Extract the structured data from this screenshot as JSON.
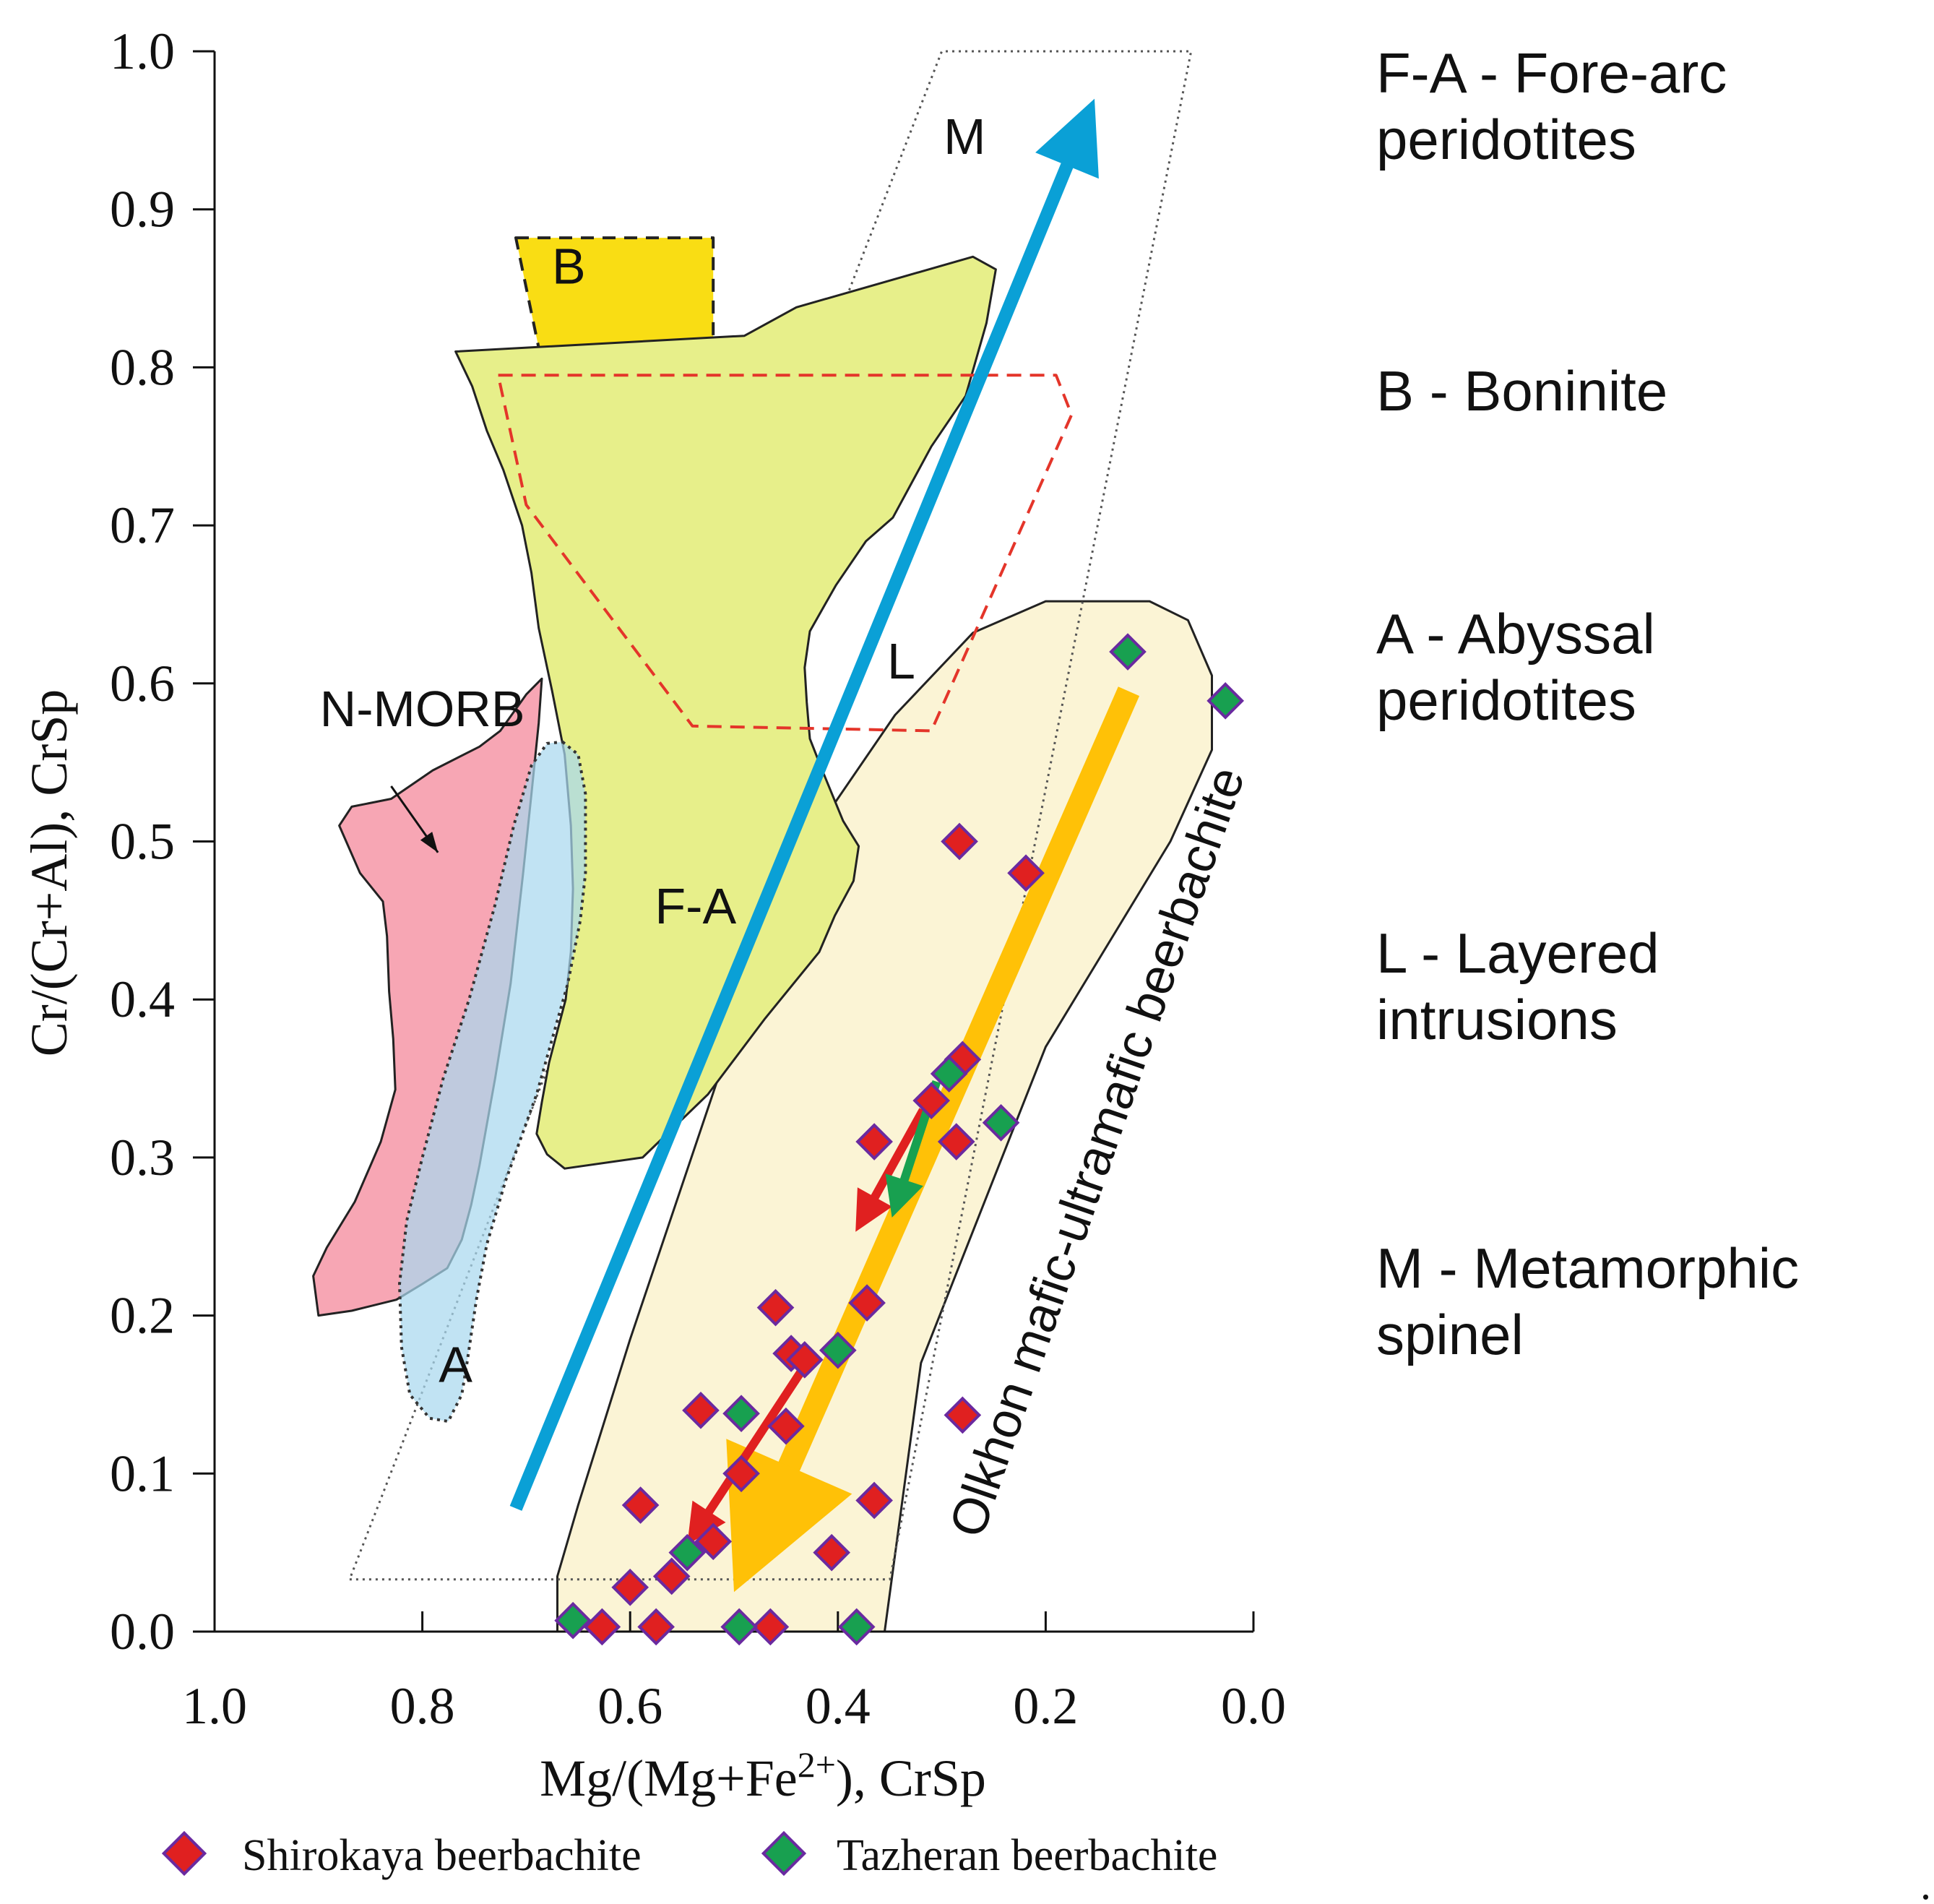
{
  "chart_data": {
    "type": "scatter",
    "xlabel": "Mg/(Mg+Fe2+), CrSp",
    "xlabel_base": "Mg/(Mg+Fe",
    "xlabel_sup": "2+",
    "xlabel_tail": "), CrSp",
    "ylabel": "Cr/(Cr+Al), CrSp",
    "xlim": [
      1.0,
      0.0
    ],
    "ylim": [
      0.0,
      1.0
    ],
    "x_reversed": true,
    "x_ticks": [
      "1.0",
      "0.8",
      "0.6",
      "0.4",
      "0.2",
      "0.0"
    ],
    "y_ticks": [
      "0.0",
      "0.1",
      "0.2",
      "0.3",
      "0.4",
      "0.5",
      "0.6",
      "0.7",
      "0.8",
      "0.9",
      "1.0"
    ],
    "fields": [
      {
        "label": "M",
        "name": "Metamorphic spinel",
        "color": "#555555",
        "style": "dotted",
        "polygon": [
          [
            0.87,
            0.033
          ],
          [
            0.35,
            0.033
          ],
          [
            0.06,
            1.0
          ],
          [
            0.3,
            1.0
          ]
        ]
      },
      {
        "label": "B",
        "name": "Boninite",
        "color": "#f9dd14",
        "style": "dashed",
        "polygon": [
          [
            0.71,
            0.882
          ],
          [
            0.52,
            0.882
          ],
          [
            0.52,
            0.8
          ],
          [
            0.66,
            0.724
          ]
        ]
      },
      {
        "label": "F-A",
        "name": "Fore-arc peridotites",
        "color": "#e7ef8a",
        "style": "solid",
        "polygon": [
          [
            0.49,
            0.82
          ],
          [
            0.44,
            0.838
          ],
          [
            0.27,
            0.87
          ],
          [
            0.248,
            0.862
          ],
          [
            0.257,
            0.828
          ],
          [
            0.277,
            0.782
          ],
          [
            0.31,
            0.75
          ],
          [
            0.347,
            0.705
          ],
          [
            0.373,
            0.69
          ],
          [
            0.402,
            0.662
          ],
          [
            0.427,
            0.633
          ],
          [
            0.432,
            0.61
          ],
          [
            0.43,
            0.588
          ],
          [
            0.427,
            0.565
          ],
          [
            0.415,
            0.545
          ],
          [
            0.395,
            0.513
          ],
          [
            0.38,
            0.497
          ],
          [
            0.385,
            0.475
          ],
          [
            0.403,
            0.453
          ],
          [
            0.418,
            0.43
          ],
          [
            0.47,
            0.388
          ],
          [
            0.525,
            0.34
          ],
          [
            0.588,
            0.3
          ],
          [
            0.663,
            0.293
          ],
          [
            0.68,
            0.302
          ],
          [
            0.69,
            0.315
          ],
          [
            0.685,
            0.335
          ],
          [
            0.678,
            0.36
          ],
          [
            0.67,
            0.38
          ],
          [
            0.662,
            0.4
          ],
          [
            0.657,
            0.43
          ],
          [
            0.655,
            0.47
          ],
          [
            0.657,
            0.51
          ],
          [
            0.663,
            0.555
          ],
          [
            0.675,
            0.595
          ],
          [
            0.688,
            0.635
          ],
          [
            0.695,
            0.67
          ],
          [
            0.704,
            0.7
          ],
          [
            0.722,
            0.735
          ],
          [
            0.738,
            0.76
          ],
          [
            0.752,
            0.788
          ],
          [
            0.768,
            0.81
          ]
        ]
      },
      {
        "label": "N-MORB",
        "name": "N-MORB",
        "color": "#f7a6b4",
        "style": "solid",
        "polygon": [
          [
            0.685,
            0.603
          ],
          [
            0.7,
            0.593
          ],
          [
            0.725,
            0.57
          ],
          [
            0.745,
            0.56
          ],
          [
            0.79,
            0.545
          ],
          [
            0.83,
            0.527
          ],
          [
            0.868,
            0.522
          ],
          [
            0.88,
            0.51
          ],
          [
            0.86,
            0.48
          ],
          [
            0.838,
            0.462
          ],
          [
            0.834,
            0.44
          ],
          [
            0.832,
            0.405
          ],
          [
            0.828,
            0.375
          ],
          [
            0.826,
            0.343
          ],
          [
            0.84,
            0.31
          ],
          [
            0.865,
            0.272
          ],
          [
            0.892,
            0.243
          ],
          [
            0.905,
            0.225
          ],
          [
            0.9,
            0.2
          ],
          [
            0.868,
            0.203
          ],
          [
            0.825,
            0.21
          ],
          [
            0.8,
            0.22
          ],
          [
            0.776,
            0.23
          ],
          [
            0.762,
            0.248
          ],
          [
            0.753,
            0.27
          ],
          [
            0.745,
            0.295
          ],
          [
            0.73,
            0.35
          ],
          [
            0.715,
            0.41
          ],
          [
            0.703,
            0.48
          ],
          [
            0.695,
            0.53
          ],
          [
            0.688,
            0.575
          ]
        ]
      },
      {
        "label": "A",
        "name": "Abyssal peridotites",
        "color": "#a9d8ee",
        "style": "dotted",
        "polygon": [
          [
            0.665,
            0.563
          ],
          [
            0.65,
            0.555
          ],
          [
            0.643,
            0.53
          ],
          [
            0.643,
            0.48
          ],
          [
            0.648,
            0.45
          ],
          [
            0.66,
            0.41
          ],
          [
            0.69,
            0.34
          ],
          [
            0.72,
            0.285
          ],
          [
            0.738,
            0.245
          ],
          [
            0.748,
            0.21
          ],
          [
            0.757,
            0.17
          ],
          [
            0.762,
            0.15
          ],
          [
            0.775,
            0.133
          ],
          [
            0.793,
            0.135
          ],
          [
            0.812,
            0.15
          ],
          [
            0.82,
            0.18
          ],
          [
            0.822,
            0.22
          ],
          [
            0.815,
            0.26
          ],
          [
            0.8,
            0.3
          ],
          [
            0.78,
            0.35
          ],
          [
            0.755,
            0.4
          ],
          [
            0.73,
            0.46
          ],
          [
            0.712,
            0.51
          ],
          [
            0.695,
            0.548
          ],
          [
            0.68,
            0.562
          ]
        ]
      },
      {
        "label": "L",
        "name": "Layered intrusions",
        "color": "#e4352a",
        "style": "dashed",
        "polygon": [
          [
            0.727,
            0.795
          ],
          [
            0.19,
            0.795
          ],
          [
            0.175,
            0.77
          ],
          [
            0.31,
            0.57
          ],
          [
            0.54,
            0.573
          ],
          [
            0.7,
            0.713
          ]
        ]
      },
      {
        "label": "Olkhon mafic-ultramafic beerbachite",
        "name": "Olkhon mafic-ultramafic beerbachite",
        "color": "#fbf4d5",
        "style": "solid",
        "polygon": [
          [
            0.67,
            0.035
          ],
          [
            0.65,
            0.08
          ],
          [
            0.6,
            0.185
          ],
          [
            0.5,
            0.38
          ],
          [
            0.42,
            0.508
          ],
          [
            0.345,
            0.58
          ],
          [
            0.27,
            0.632
          ],
          [
            0.2,
            0.652
          ],
          [
            0.148,
            0.652
          ],
          [
            0.1,
            0.652
          ],
          [
            0.063,
            0.64
          ],
          [
            0.04,
            0.605
          ],
          [
            0.04,
            0.558
          ],
          [
            0.08,
            0.5
          ],
          [
            0.2,
            0.37
          ],
          [
            0.32,
            0.17
          ],
          [
            0.355,
            0.0
          ],
          [
            0.67,
            0.0
          ]
        ]
      }
    ],
    "field_labels": [
      {
        "text": "M",
        "x": 0.278,
        "y": 0.935
      },
      {
        "text": "B",
        "x": 0.659,
        "y": 0.853
      },
      {
        "text": "L",
        "x": 0.339,
        "y": 0.603
      },
      {
        "text": "F-A",
        "x": 0.537,
        "y": 0.448
      },
      {
        "text": "A",
        "x": 0.768,
        "y": 0.158
      },
      {
        "text": "N-MORB",
        "x": 0.8,
        "y": 0.573
      }
    ],
    "olkhon_label": "Olkhon mafic-ultramafic beerbachite",
    "trends": [
      {
        "name": "blue-trend-arrow",
        "color": "#0aa0d6",
        "from": [
          0.71,
          0.078
        ],
        "to": [
          0.153,
          0.97
        ]
      },
      {
        "name": "orange-trend-arrow",
        "color": "#ffc107",
        "from": [
          0.12,
          0.595
        ],
        "to": [
          0.5,
          0.025
        ]
      },
      {
        "name": "red-trend-arrow-upper",
        "color": "#e02020",
        "from": [
          0.318,
          0.33
        ],
        "to": [
          0.383,
          0.253
        ]
      },
      {
        "name": "green-trend-arrow",
        "color": "#18a050",
        "from": [
          0.305,
          0.348
        ],
        "to": [
          0.348,
          0.262
        ]
      },
      {
        "name": "red-trend-arrow-lower",
        "color": "#e02020",
        "from": [
          0.43,
          0.17
        ],
        "to": [
          0.545,
          0.055
        ]
      }
    ],
    "series": [
      {
        "name": "Shirokaya beerbachite",
        "color": "#e02020",
        "edge": "#6a2aa0",
        "points": [
          [
            0.283,
            0.5
          ],
          [
            0.219,
            0.48
          ],
          [
            0.28,
            0.362
          ],
          [
            0.31,
            0.336
          ],
          [
            0.365,
            0.31
          ],
          [
            0.286,
            0.31
          ],
          [
            0.46,
            0.205
          ],
          [
            0.372,
            0.208
          ],
          [
            0.445,
            0.176
          ],
          [
            0.432,
            0.172
          ],
          [
            0.532,
            0.14
          ],
          [
            0.45,
            0.13
          ],
          [
            0.28,
            0.137
          ],
          [
            0.493,
            0.1
          ],
          [
            0.59,
            0.08
          ],
          [
            0.365,
            0.083
          ],
          [
            0.406,
            0.05
          ],
          [
            0.56,
            0.035
          ],
          [
            0.6,
            0.028
          ],
          [
            0.627,
            0.003
          ],
          [
            0.575,
            0.003
          ],
          [
            0.465,
            0.003
          ],
          [
            0.52,
            0.057
          ]
        ]
      },
      {
        "name": "Tazheran beerbachite",
        "color": "#18a050",
        "edge": "#6a2aa0",
        "points": [
          [
            0.121,
            0.62
          ],
          [
            0.027,
            0.589
          ],
          [
            0.293,
            0.353
          ],
          [
            0.243,
            0.322
          ],
          [
            0.4,
            0.178
          ],
          [
            0.493,
            0.138
          ],
          [
            0.545,
            0.05
          ],
          [
            0.655,
            0.007
          ],
          [
            0.495,
            0.003
          ],
          [
            0.382,
            0.003
          ]
        ]
      }
    ],
    "key": [
      {
        "text": "F-A - Fore-arc"
      },
      {
        "text": "peridotites"
      },
      {
        "text": "B - Boninite"
      },
      {
        "text": "A - Abyssal"
      },
      {
        "text": "peridotites"
      },
      {
        "text": "L - Layered"
      },
      {
        "text": "intrusions"
      },
      {
        "text": "M - Metamorphic"
      },
      {
        "text": "spinel"
      }
    ],
    "legend": [
      {
        "label": "Shirokaya beerbachite",
        "color": "#e02020"
      },
      {
        "label": "Tazheran beerbachite",
        "color": "#18a050"
      }
    ],
    "corner_mark": "."
  }
}
